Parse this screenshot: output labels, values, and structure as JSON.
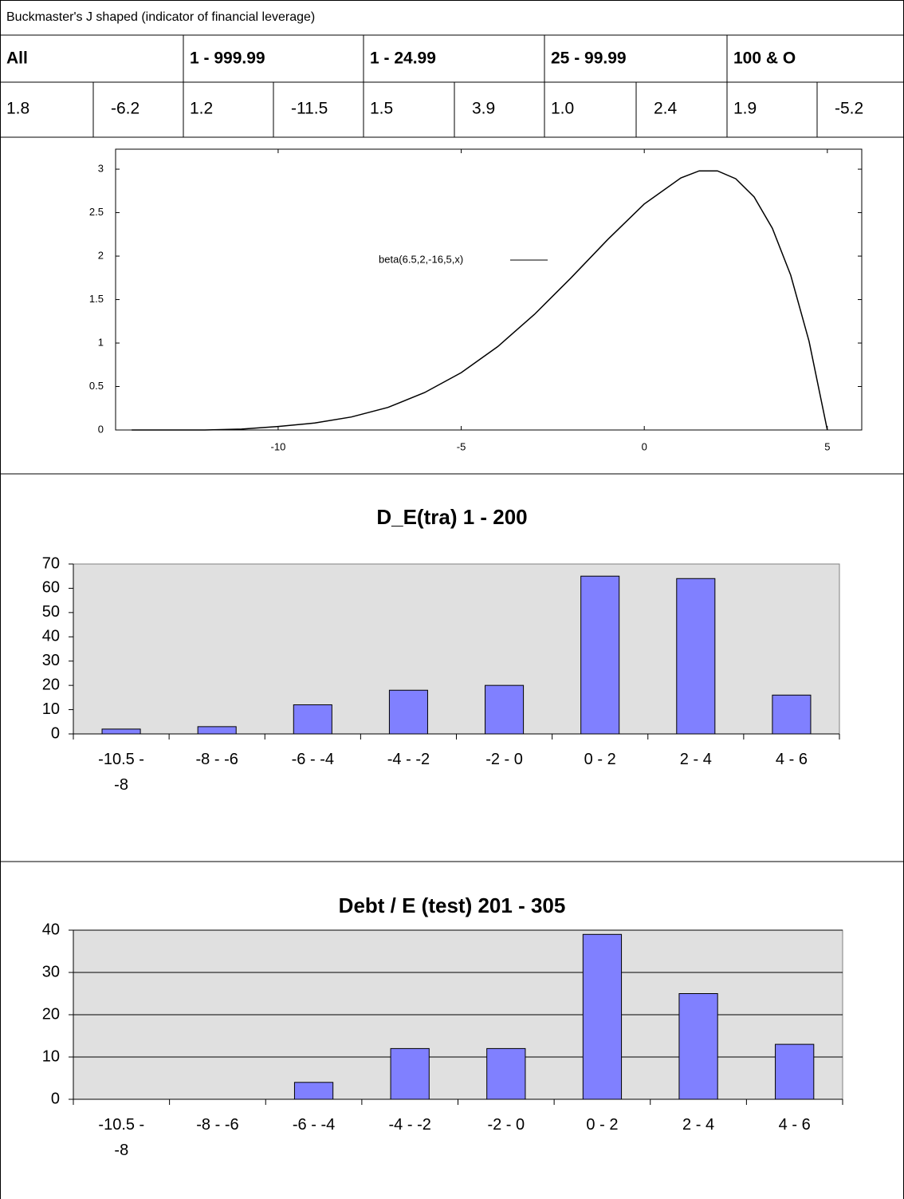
{
  "title": "Buckmaster's J shaped (indicator of financial leverage)",
  "table": {
    "headers": [
      "All",
      "1 - 999.99",
      "1 - 24.99",
      "25 - 99.99",
      "100 & O"
    ],
    "values": [
      "1.8",
      "-6.2",
      "1.2",
      "-11.5",
      "1.5",
      "3.9",
      "1.0",
      "2.4",
      "1.9",
      "-5.2"
    ]
  },
  "chart_data": [
    {
      "type": "line",
      "x": [
        -14,
        -13,
        -12,
        -11,
        -10,
        -9,
        -8,
        -7,
        -6,
        -5,
        -4,
        -3,
        -2,
        -1,
        0,
        1,
        1.5,
        2,
        2.5,
        3,
        3.5,
        4,
        4.5,
        5
      ],
      "series": [
        {
          "name": "beta(6.5,2,-16,5,x)",
          "color": "#000000",
          "values": [
            0,
            0,
            0,
            0.01,
            0.04,
            0.08,
            0.15,
            0.26,
            0.43,
            0.66,
            0.96,
            1.33,
            1.75,
            2.19,
            2.6,
            2.9,
            2.98,
            2.98,
            2.89,
            2.68,
            2.32,
            1.78,
            1.02,
            0
          ]
        }
      ],
      "xlim": [
        -14.44,
        5.94
      ],
      "xticks": [
        -10,
        -5,
        0,
        5
      ],
      "ylim": [
        0,
        3.23
      ],
      "yticks": [
        0,
        0.5,
        1,
        1.5,
        2,
        2.5,
        3
      ],
      "legend": "inside",
      "grid": false
    },
    {
      "type": "bar",
      "title": "D_E(tra) 1 - 200",
      "categories": [
        "-10.5 - -8",
        "-8 - -6",
        "-6 - -4",
        "-4 - -2",
        "-2 - 0",
        "0 - 2",
        "2 - 4",
        "4 - 6"
      ],
      "values": [
        2,
        3,
        12,
        18,
        20,
        65,
        64,
        16
      ],
      "color": "#8080ff",
      "background": "#e0e0e0",
      "ylim": [
        0,
        70
      ],
      "yticks": [
        0,
        10,
        20,
        30,
        40,
        50,
        60,
        70
      ],
      "grid": false
    },
    {
      "type": "bar",
      "title": "Debt / E (test) 201 - 305",
      "categories": [
        "-10.5 - -8",
        "-8 - -6",
        "-6 - -4",
        "-4 - -2",
        "-2 - 0",
        "0 - 2",
        "2 - 4",
        "4 - 6"
      ],
      "values": [
        0,
        0,
        4,
        12,
        12,
        39,
        25,
        13
      ],
      "color": "#8080ff",
      "background": "#e0e0e0",
      "ylim": [
        0,
        40
      ],
      "yticks": [
        0,
        10,
        20,
        30,
        40
      ],
      "grid": true
    }
  ]
}
